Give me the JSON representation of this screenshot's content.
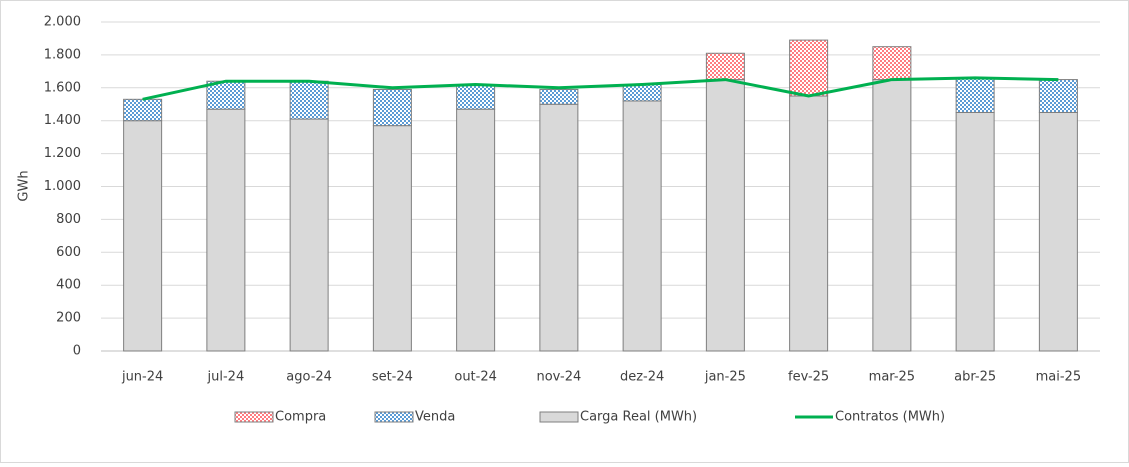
{
  "chart_data": {
    "type": "bar",
    "y_label": "GWh",
    "categories": [
      "jun-24",
      "jul-24",
      "ago-24",
      "set-24",
      "out-24",
      "nov-24",
      "dez-24",
      "jan-25",
      "fev-25",
      "mar-25",
      "abr-25",
      "mai-25"
    ],
    "series": [
      {
        "name": "Carga Real (MWh)",
        "color": "#d9d9d9",
        "kind": "bar",
        "values": [
          1400,
          1470,
          1410,
          1370,
          1470,
          1500,
          1520,
          1650,
          1550,
          1650,
          1450,
          1450
        ]
      },
      {
        "name": "Venda",
        "color": "#5b9bd5",
        "kind": "bar",
        "values": [
          130,
          170,
          230,
          220,
          150,
          90,
          100,
          0,
          0,
          0,
          210,
          200
        ]
      },
      {
        "name": "Compra",
        "color": "#ff7c80",
        "kind": "bar",
        "values": [
          0,
          0,
          0,
          0,
          0,
          0,
          0,
          160,
          340,
          200,
          0,
          0
        ]
      },
      {
        "name": "Contratos (MWh)",
        "color": "#00b050",
        "kind": "line",
        "values": [
          1530,
          1640,
          1640,
          1600,
          1620,
          1600,
          1620,
          1650,
          1550,
          1650,
          1660,
          1650
        ]
      }
    ],
    "legend_order": [
      2,
      1,
      0,
      3
    ],
    "ylim": [
      0,
      2000
    ],
    "yticks": [
      0,
      200,
      400,
      600,
      800,
      {
        "value": 1000,
        "label": "1.000"
      },
      {
        "value": 1200,
        "label": "1.200"
      },
      {
        "value": 1400,
        "label": "1.400"
      },
      {
        "value": 1600,
        "label": "1.600"
      },
      {
        "value": 1800,
        "label": "1.800"
      },
      {
        "value": 2000,
        "label": "2.000"
      }
    ],
    "grid": true
  }
}
